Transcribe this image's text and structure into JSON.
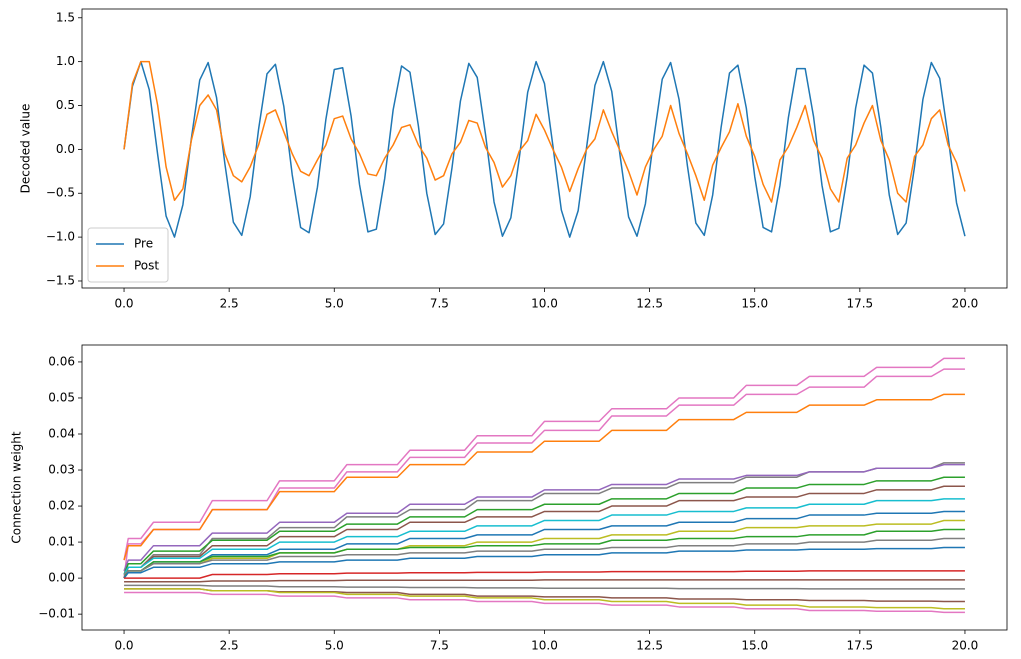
{
  "chart_data": [
    {
      "type": "line",
      "ylabel": "Decoded value",
      "legend": "lower left",
      "xlim": [
        -1,
        21
      ],
      "ylim": [
        -1.58,
        1.6
      ],
      "xticks": [
        {
          "value": 0,
          "label": "0.0"
        },
        2.5,
        {
          "value": 5,
          "label": "5.0"
        },
        7.5,
        {
          "value": 10,
          "label": "10.0"
        },
        12.5,
        {
          "value": 15,
          "label": "15.0"
        },
        17.5,
        {
          "value": 20,
          "label": "20.0"
        }
      ],
      "yticks": [
        {
          "value": -1.5,
          "label": "−1.5"
        },
        {
          "value": -1,
          "label": "−1.0"
        },
        {
          "value": -0.5,
          "label": "−0.5"
        },
        {
          "value": 0,
          "label": "0.0"
        },
        0.5,
        {
          "value": 1,
          "label": "1.0"
        },
        1.5
      ],
      "x": [
        0,
        0.2,
        0.4,
        0.6,
        0.8,
        1,
        1.2,
        1.4,
        1.6,
        1.8,
        2,
        2.2,
        2.4,
        2.6,
        2.8,
        3,
        3.2,
        3.4,
        3.6,
        3.8,
        4,
        4.2,
        4.4,
        4.6,
        4.8,
        5,
        5.2,
        5.4,
        5.6,
        5.8,
        6,
        6.2,
        6.4,
        6.6,
        6.8,
        7,
        7.2,
        7.4,
        7.6,
        7.8,
        8,
        8.2,
        8.4,
        8.6,
        8.8,
        9,
        9.2,
        9.4,
        9.6,
        9.8,
        10,
        10.2,
        10.4,
        10.6,
        10.8,
        11,
        11.2,
        11.4,
        11.6,
        11.8,
        12,
        12.2,
        12.4,
        12.6,
        12.8,
        13,
        13.2,
        13.4,
        13.6,
        13.8,
        14,
        14.2,
        14.4,
        14.6,
        14.8,
        15,
        15.2,
        15.4,
        15.6,
        15.8,
        16,
        16.2,
        16.4,
        16.6,
        16.8,
        17,
        17.2,
        17.4,
        17.6,
        17.8,
        18,
        18.2,
        18.4,
        18.6,
        18.8,
        19,
        19.2,
        19.4,
        19.6,
        19.8,
        20
      ],
      "series": [
        {
          "name": "Pre",
          "color": "#1f77b4",
          "values": [
            0,
            0.72,
            1,
            0.68,
            -0.06,
            -0.76,
            -1,
            -0.63,
            0.12,
            0.79,
            0.99,
            0.59,
            -0.17,
            -0.83,
            -0.98,
            -0.54,
            0.23,
            0.86,
            0.97,
            0.49,
            -0.29,
            -0.89,
            -0.95,
            -0.43,
            0.34,
            0.91,
            0.93,
            0.38,
            -0.4,
            -0.94,
            -0.91,
            -0.33,
            0.45,
            0.95,
            0.88,
            0.27,
            -0.5,
            -0.97,
            -0.85,
            -0.21,
            0.55,
            0.98,
            0.82,
            0.16,
            -0.6,
            -0.99,
            -0.78,
            -0.1,
            0.65,
            1,
            0.75,
            0.04,
            -0.69,
            -1,
            -0.7,
            0.02,
            0.73,
            1,
            0.66,
            -0.08,
            -0.77,
            -0.99,
            -0.62,
            0.13,
            0.8,
            0.99,
            0.57,
            -0.19,
            -0.84,
            -0.98,
            -0.52,
            0.25,
            0.87,
            0.96,
            0.47,
            -0.31,
            -0.89,
            -0.94,
            -0.41,
            0.36,
            0.92,
            0.92,
            0.37,
            -0.41,
            -0.94,
            -0.9,
            -0.31,
            0.47,
            0.96,
            0.87,
            0.25,
            -0.52,
            -0.97,
            -0.84,
            -0.2,
            0.57,
            0.99,
            0.81,
            0.14,
            -0.61,
            -0.99
          ]
        },
        {
          "name": "Post",
          "color": "#ff7f0e",
          "values": [
            0,
            0.75,
            1,
            1,
            0.5,
            -0.2,
            -0.58,
            -0.45,
            0.1,
            0.5,
            0.62,
            0.45,
            -0.05,
            -0.3,
            -0.37,
            -0.2,
            0.05,
            0.4,
            0.45,
            0.2,
            -0.05,
            -0.25,
            -0.3,
            -0.12,
            0.05,
            0.35,
            0.38,
            0.12,
            -0.05,
            -0.28,
            -0.3,
            -0.1,
            0.05,
            0.25,
            0.28,
            0.05,
            -0.1,
            -0.35,
            -0.3,
            -0.05,
            0.08,
            0.33,
            0.3,
            0.02,
            -0.15,
            -0.43,
            -0.3,
            -0.02,
            0.1,
            0.4,
            0.22,
            0,
            -0.2,
            -0.48,
            -0.22,
            0,
            0.12,
            0.45,
            0.2,
            -0.02,
            -0.25,
            -0.52,
            -0.2,
            0,
            0.15,
            0.5,
            0.18,
            -0.05,
            -0.3,
            -0.58,
            -0.18,
            0.02,
            0.2,
            0.52,
            0.15,
            -0.08,
            -0.4,
            -0.6,
            -0.12,
            0.03,
            0.25,
            0.5,
            0.1,
            -0.1,
            -0.45,
            -0.6,
            -0.1,
            0.05,
            0.3,
            0.5,
            0.1,
            -0.12,
            -0.5,
            -0.6,
            -0.08,
            0.05,
            0.35,
            0.45,
            0.05,
            -0.15,
            -0.48
          ]
        }
      ]
    },
    {
      "type": "line",
      "ylabel": "Connection weight",
      "xlim": [
        -1,
        21
      ],
      "ylim": [
        -0.0144,
        0.0647
      ],
      "xticks": [
        {
          "value": 0,
          "label": "0.0"
        },
        2.5,
        {
          "value": 5,
          "label": "5.0"
        },
        7.5,
        {
          "value": 10,
          "label": "10.0"
        },
        12.5,
        {
          "value": 15,
          "label": "15.0"
        },
        17.5,
        {
          "value": 20,
          "label": "20.0"
        }
      ],
      "yticks": [
        {
          "value": -0.01,
          "label": "−0.01"
        },
        {
          "value": 0,
          "label": "0.00"
        },
        0.01,
        0.02,
        0.03,
        0.04,
        0.05,
        0.06
      ],
      "x": [
        0,
        0.1,
        0.4,
        0.7,
        1.8,
        2.1,
        3.4,
        3.7,
        5,
        5.3,
        6.5,
        6.8,
        8.1,
        8.4,
        9.7,
        10,
        11.3,
        11.6,
        12.9,
        13.2,
        14.5,
        14.8,
        16,
        16.3,
        17.6,
        17.9,
        19.2,
        19.5,
        20
      ],
      "series": [
        {
          "color": "#e377c2",
          "values": [
            0.005,
            0.011,
            0.011,
            0.0155,
            0.0155,
            0.0215,
            0.0215,
            0.027,
            0.027,
            0.0315,
            0.0315,
            0.0355,
            0.0355,
            0.0395,
            0.0395,
            0.0435,
            0.0435,
            0.047,
            0.047,
            0.05,
            0.05,
            0.0535,
            0.0535,
            0.056,
            0.056,
            0.0585,
            0.0585,
            0.061,
            0.061
          ]
        },
        {
          "color": "#e377c2",
          "values": [
            0,
            0.0095,
            0.0095,
            0.0135,
            0.0135,
            0.019,
            0.019,
            0.025,
            0.025,
            0.0295,
            0.0295,
            0.0335,
            0.0335,
            0.0375,
            0.0375,
            0.041,
            0.041,
            0.045,
            0.045,
            0.048,
            0.048,
            0.051,
            0.051,
            0.053,
            0.053,
            0.056,
            0.056,
            0.058,
            0.058
          ]
        },
        {
          "color": "#ff7f0e",
          "values": [
            0.005,
            0.009,
            0.009,
            0.0135,
            0.0135,
            0.019,
            0.019,
            0.024,
            0.024,
            0.028,
            0.028,
            0.0315,
            0.0315,
            0.035,
            0.035,
            0.038,
            0.038,
            0.041,
            0.041,
            0.044,
            0.044,
            0.046,
            0.046,
            0.048,
            0.048,
            0.0495,
            0.0495,
            0.051,
            0.051
          ]
        },
        {
          "color": "#7f7f7f",
          "values": [
            0,
            0.003,
            0.003,
            0.0065,
            0.0065,
            0.011,
            0.011,
            0.014,
            0.014,
            0.017,
            0.017,
            0.019,
            0.019,
            0.0215,
            0.0215,
            0.0235,
            0.0235,
            0.025,
            0.025,
            0.0265,
            0.0265,
            0.028,
            0.028,
            0.0295,
            0.0295,
            0.0305,
            0.0305,
            0.032,
            0.032
          ]
        },
        {
          "color": "#9467bd",
          "values": [
            0.002,
            0.005,
            0.005,
            0.009,
            0.009,
            0.0125,
            0.0125,
            0.0155,
            0.0155,
            0.018,
            0.018,
            0.0205,
            0.0205,
            0.0225,
            0.0225,
            0.0245,
            0.0245,
            0.026,
            0.026,
            0.0275,
            0.0275,
            0.0285,
            0.0285,
            0.0295,
            0.0295,
            0.0305,
            0.0305,
            0.0315,
            0.0315
          ]
        },
        {
          "color": "#2ca02c",
          "values": [
            0.001,
            0.004,
            0.004,
            0.0075,
            0.0075,
            0.0105,
            0.0105,
            0.013,
            0.013,
            0.015,
            0.015,
            0.017,
            0.017,
            0.019,
            0.019,
            0.0205,
            0.0205,
            0.022,
            0.022,
            0.0235,
            0.0235,
            0.025,
            0.025,
            0.026,
            0.026,
            0.027,
            0.027,
            0.028,
            0.028
          ]
        },
        {
          "color": "#8c564b",
          "values": [
            0,
            0.003,
            0.003,
            0.006,
            0.006,
            0.009,
            0.009,
            0.0115,
            0.0115,
            0.0135,
            0.0135,
            0.0155,
            0.0155,
            0.017,
            0.017,
            0.0185,
            0.0185,
            0.02,
            0.02,
            0.0215,
            0.0215,
            0.0225,
            0.0225,
            0.0235,
            0.0235,
            0.0245,
            0.0245,
            0.0255,
            0.0255
          ]
        },
        {
          "color": "#17becf",
          "values": [
            0.001,
            0.003,
            0.003,
            0.0055,
            0.0055,
            0.008,
            0.008,
            0.01,
            0.01,
            0.0115,
            0.0115,
            0.013,
            0.013,
            0.0145,
            0.0145,
            0.016,
            0.016,
            0.0175,
            0.0175,
            0.0185,
            0.0185,
            0.0195,
            0.0195,
            0.0205,
            0.0205,
            0.0215,
            0.0215,
            0.022,
            0.022
          ]
        },
        {
          "color": "#1f77b4",
          "values": [
            0,
            0.002,
            0.002,
            0.0045,
            0.0045,
            0.0065,
            0.0065,
            0.008,
            0.008,
            0.0095,
            0.0095,
            0.011,
            0.011,
            0.012,
            0.012,
            0.0135,
            0.0135,
            0.0145,
            0.0145,
            0.0155,
            0.0155,
            0.0165,
            0.0165,
            0.0175,
            0.0175,
            0.018,
            0.018,
            0.0185,
            0.0185
          ]
        },
        {
          "color": "#bcbd22",
          "values": [
            0,
            0.002,
            0.002,
            0.004,
            0.004,
            0.0055,
            0.0055,
            0.007,
            0.007,
            0.008,
            0.008,
            0.009,
            0.009,
            0.01,
            0.01,
            0.011,
            0.011,
            0.012,
            0.012,
            0.013,
            0.013,
            0.014,
            0.014,
            0.0145,
            0.0145,
            0.015,
            0.015,
            0.016,
            0.016
          ]
        },
        {
          "color": "#2ca02c",
          "values": [
            0,
            0.002,
            0.002,
            0.0045,
            0.0045,
            0.006,
            0.006,
            0.007,
            0.007,
            0.008,
            0.008,
            0.0085,
            0.0085,
            0.009,
            0.009,
            0.0095,
            0.0095,
            0.0105,
            0.0105,
            0.011,
            0.011,
            0.0115,
            0.0115,
            0.012,
            0.012,
            0.013,
            0.013,
            0.0135,
            0.0135
          ]
        },
        {
          "color": "#7f7f7f",
          "values": [
            0.001,
            0.002,
            0.002,
            0.004,
            0.004,
            0.005,
            0.005,
            0.006,
            0.006,
            0.0065,
            0.0065,
            0.007,
            0.007,
            0.0075,
            0.0075,
            0.008,
            0.008,
            0.0085,
            0.0085,
            0.009,
            0.009,
            0.0095,
            0.0095,
            0.01,
            0.01,
            0.0105,
            0.0105,
            0.011,
            0.011
          ]
        },
        {
          "color": "#1f77b4",
          "values": [
            0,
            0.0015,
            0.0015,
            0.003,
            0.003,
            0.004,
            0.004,
            0.0045,
            0.0045,
            0.005,
            0.005,
            0.0055,
            0.0055,
            0.006,
            0.006,
            0.0065,
            0.0065,
            0.007,
            0.007,
            0.0075,
            0.0075,
            0.0078,
            0.0078,
            0.008,
            0.008,
            0.0082,
            0.0082,
            0.0085,
            0.0085
          ]
        },
        {
          "color": "#d62728",
          "values": [
            0,
            0,
            0,
            0,
            0,
            0.001,
            0.001,
            0.0012,
            0.0012,
            0.0014,
            0.0014,
            0.0015,
            0.0015,
            0.0016,
            0.0016,
            0.0017,
            0.0017,
            0.0018,
            0.0018,
            0.0018,
            0.0018,
            0.0019,
            0.0019,
            0.002,
            0.002,
            0.002,
            0.002,
            0.002,
            0.002
          ]
        },
        {
          "color": "#8c564b",
          "values": [
            -0.001,
            -0.001,
            -0.001,
            -0.001,
            -0.001,
            -0.0008,
            -0.0008,
            -0.0007,
            -0.0007,
            -0.0006,
            -0.0006,
            -0.0006,
            -0.0006,
            -0.0006,
            -0.0006,
            -0.0005,
            -0.0005,
            -0.0005,
            -0.0005,
            -0.0005,
            -0.0005,
            -0.0005,
            -0.0005,
            -0.0005,
            -0.0005,
            -0.0005,
            -0.0005,
            -0.0005,
            -0.0005
          ]
        },
        {
          "color": "#7f7f7f",
          "values": [
            -0.002,
            -0.002,
            -0.002,
            -0.002,
            -0.002,
            -0.0022,
            -0.0022,
            -0.0024,
            -0.0024,
            -0.0025,
            -0.0025,
            -0.0026,
            -0.0026,
            -0.0027,
            -0.0027,
            -0.0028,
            -0.0028,
            -0.0028,
            -0.0028,
            -0.0029,
            -0.0029,
            -0.0029,
            -0.0029,
            -0.003,
            -0.003,
            -0.003,
            -0.003,
            -0.003,
            -0.003
          ]
        },
        {
          "color": "#8c564b",
          "values": [
            -0.003,
            -0.003,
            -0.003,
            -0.003,
            -0.003,
            -0.0035,
            -0.0035,
            -0.0038,
            -0.0038,
            -0.004,
            -0.004,
            -0.0045,
            -0.0045,
            -0.005,
            -0.005,
            -0.0052,
            -0.0052,
            -0.0055,
            -0.0055,
            -0.0058,
            -0.0058,
            -0.006,
            -0.006,
            -0.0062,
            -0.0062,
            -0.0064,
            -0.0064,
            -0.0065,
            -0.0065
          ]
        },
        {
          "color": "#bcbd22",
          "values": [
            -0.003,
            -0.003,
            -0.003,
            -0.003,
            -0.003,
            -0.0035,
            -0.0035,
            -0.004,
            -0.004,
            -0.0045,
            -0.0045,
            -0.005,
            -0.005,
            -0.0055,
            -0.0055,
            -0.006,
            -0.006,
            -0.0065,
            -0.0065,
            -0.007,
            -0.007,
            -0.0075,
            -0.0075,
            -0.008,
            -0.008,
            -0.0082,
            -0.0082,
            -0.0085,
            -0.0085
          ]
        },
        {
          "color": "#e377c2",
          "values": [
            -0.004,
            -0.004,
            -0.004,
            -0.004,
            -0.004,
            -0.0045,
            -0.0045,
            -0.005,
            -0.005,
            -0.0055,
            -0.0055,
            -0.006,
            -0.006,
            -0.0065,
            -0.0065,
            -0.007,
            -0.007,
            -0.0075,
            -0.0075,
            -0.008,
            -0.008,
            -0.0085,
            -0.0085,
            -0.009,
            -0.009,
            -0.0092,
            -0.0092,
            -0.0095,
            -0.0095
          ]
        }
      ]
    }
  ]
}
